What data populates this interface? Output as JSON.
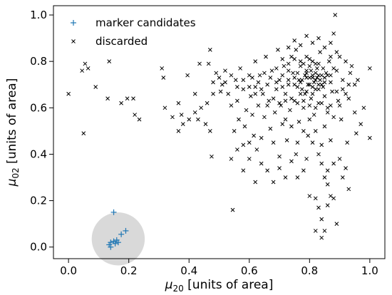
{
  "chart_data": {
    "type": "scatter",
    "xlabel": {
      "symbol": "μ",
      "sub": "20",
      "text": " [units of area]"
    },
    "ylabel": {
      "symbol": "μ",
      "sub": "02",
      "text": " [units of area]"
    },
    "xlim": [
      -0.05,
      1.05
    ],
    "ylim": [
      -0.05,
      1.04
    ],
    "xticks": [
      "0.0",
      "0.2",
      "0.4",
      "0.6",
      "0.8",
      "1.0"
    ],
    "yticks": [
      "0.0",
      "0.2",
      "0.4",
      "0.6",
      "0.8",
      "1.0"
    ],
    "xtick_values": [
      0.0,
      0.2,
      0.4,
      0.6,
      0.8,
      1.0
    ],
    "ytick_values": [
      0.0,
      0.2,
      0.4,
      0.6,
      0.8,
      1.0
    ],
    "grid": false,
    "legend_position": "top-left",
    "highlight_circle": {
      "cx": 0.165,
      "cy": 0.035,
      "r": 0.088,
      "color": "#d9d9d9"
    },
    "series": [
      {
        "name": "marker candidates",
        "marker": "+",
        "color": "#1f77b4",
        "points": [
          [
            0.15,
            0.15
          ],
          [
            0.19,
            0.07
          ],
          [
            0.175,
            0.055
          ],
          [
            0.16,
            0.03
          ],
          [
            0.15,
            0.025
          ],
          [
            0.14,
            0.02
          ],
          [
            0.135,
            0.01
          ],
          [
            0.14,
            0.0
          ],
          [
            0.165,
            0.02
          ],
          [
            0.155,
            0.015
          ]
        ]
      },
      {
        "name": "discarded",
        "marker": "x",
        "color": "#000000",
        "points": [
          [
            0.0,
            0.66
          ],
          [
            0.045,
            0.76
          ],
          [
            0.055,
            0.79
          ],
          [
            0.065,
            0.77
          ],
          [
            0.09,
            0.69
          ],
          [
            0.135,
            0.8
          ],
          [
            0.13,
            0.64
          ],
          [
            0.05,
            0.49
          ],
          [
            0.175,
            0.62
          ],
          [
            0.195,
            0.64
          ],
          [
            0.215,
            0.64
          ],
          [
            0.22,
            0.57
          ],
          [
            0.235,
            0.55
          ],
          [
            0.31,
            0.77
          ],
          [
            0.315,
            0.73
          ],
          [
            0.32,
            0.6
          ],
          [
            0.345,
            0.56
          ],
          [
            0.365,
            0.5
          ],
          [
            0.365,
            0.62
          ],
          [
            0.375,
            0.57
          ],
          [
            0.395,
            0.74
          ],
          [
            0.42,
            0.66
          ],
          [
            0.43,
            0.55
          ],
          [
            0.435,
            0.79
          ],
          [
            0.455,
            0.53
          ],
          [
            0.465,
            0.79
          ],
          [
            0.47,
            0.85
          ],
          [
            0.47,
            0.5
          ],
          [
            0.475,
            0.39
          ],
          [
            0.48,
            0.71
          ],
          [
            0.49,
            0.75
          ],
          [
            0.505,
            0.67
          ],
          [
            0.51,
            0.7
          ],
          [
            0.52,
            0.76
          ],
          [
            0.53,
            0.66
          ],
          [
            0.54,
            0.61
          ],
          [
            0.545,
            0.16
          ],
          [
            0.55,
            0.5
          ],
          [
            0.555,
            0.72
          ],
          [
            0.56,
            0.63
          ],
          [
            0.565,
            0.55
          ],
          [
            0.57,
            0.77
          ],
          [
            0.58,
            0.44
          ],
          [
            0.58,
            0.68
          ],
          [
            0.585,
            0.52
          ],
          [
            0.59,
            0.59
          ],
          [
            0.6,
            0.74
          ],
          [
            0.6,
            0.45
          ],
          [
            0.605,
            0.65
          ],
          [
            0.61,
            0.57
          ],
          [
            0.615,
            0.48
          ],
          [
            0.62,
            0.8
          ],
          [
            0.62,
            0.69
          ],
          [
            0.625,
            0.42
          ],
          [
            0.63,
            0.61
          ],
          [
            0.635,
            0.74
          ],
          [
            0.64,
            0.47
          ],
          [
            0.645,
            0.66
          ],
          [
            0.65,
            0.56
          ],
          [
            0.655,
            0.82
          ],
          [
            0.66,
            0.7
          ],
          [
            0.665,
            0.63
          ],
          [
            0.67,
            0.51
          ],
          [
            0.675,
            0.76
          ],
          [
            0.68,
            0.45
          ],
          [
            0.685,
            0.58
          ],
          [
            0.69,
            0.68
          ],
          [
            0.695,
            0.85
          ],
          [
            0.7,
            0.72
          ],
          [
            0.7,
            0.39
          ],
          [
            0.705,
            0.61
          ],
          [
            0.71,
            0.53
          ],
          [
            0.715,
            0.78
          ],
          [
            0.72,
            0.66
          ],
          [
            0.725,
            0.46
          ],
          [
            0.73,
            0.7
          ],
          [
            0.735,
            0.59
          ],
          [
            0.74,
            0.82
          ],
          [
            0.745,
            0.75
          ],
          [
            0.75,
            0.63
          ],
          [
            0.755,
            0.4
          ],
          [
            0.755,
            0.85
          ],
          [
            0.76,
            0.69
          ],
          [
            0.765,
            0.54
          ],
          [
            0.77,
            0.78
          ],
          [
            0.775,
            0.72
          ],
          [
            0.78,
            0.6
          ],
          [
            0.785,
            0.66
          ],
          [
            0.79,
            0.76
          ],
          [
            0.795,
            0.48
          ],
          [
            0.8,
            0.81
          ],
          [
            0.8,
            0.7
          ],
          [
            0.805,
            0.64
          ],
          [
            0.81,
            0.74
          ],
          [
            0.815,
            0.57
          ],
          [
            0.82,
            0.79
          ],
          [
            0.82,
            0.68
          ],
          [
            0.825,
            0.73
          ],
          [
            0.83,
            0.62
          ],
          [
            0.835,
            0.84
          ],
          [
            0.84,
            0.7
          ],
          [
            0.84,
            0.44
          ],
          [
            0.845,
            0.77
          ],
          [
            0.85,
            0.65
          ],
          [
            0.855,
            0.75
          ],
          [
            0.86,
            0.58
          ],
          [
            0.865,
            0.8
          ],
          [
            0.87,
            0.71
          ],
          [
            0.875,
            0.67
          ],
          [
            0.88,
            0.92
          ],
          [
            0.885,
            1.0
          ],
          [
            0.89,
            0.76
          ],
          [
            0.895,
            0.63
          ],
          [
            0.9,
            0.82
          ],
          [
            0.905,
            0.55
          ],
          [
            0.91,
            0.72
          ],
          [
            0.92,
            0.66
          ],
          [
            0.925,
            0.45
          ],
          [
            0.935,
            0.75
          ],
          [
            0.95,
            0.7
          ],
          [
            0.955,
            0.49
          ],
          [
            0.98,
            0.6
          ],
          [
            1.0,
            0.47
          ],
          [
            1.0,
            0.77
          ],
          [
            0.765,
            0.72
          ],
          [
            0.775,
            0.68
          ],
          [
            0.785,
            0.74
          ],
          [
            0.795,
            0.7
          ],
          [
            0.805,
            0.76
          ],
          [
            0.815,
            0.71
          ],
          [
            0.825,
            0.77
          ],
          [
            0.835,
            0.72
          ],
          [
            0.845,
            0.69
          ],
          [
            0.79,
            0.73
          ],
          [
            0.81,
            0.69
          ],
          [
            0.82,
            0.75
          ],
          [
            0.83,
            0.7
          ],
          [
            0.8,
            0.78
          ],
          [
            0.77,
            0.66
          ],
          [
            0.76,
            0.75
          ],
          [
            0.78,
            0.79
          ],
          [
            0.84,
            0.74
          ],
          [
            0.85,
            0.71
          ],
          [
            0.86,
            0.74
          ],
          [
            0.75,
            0.73
          ],
          [
            0.73,
            0.76
          ],
          [
            0.88,
            0.77
          ],
          [
            0.87,
            0.82
          ],
          [
            0.82,
            0.72
          ],
          [
            0.81,
            0.66
          ],
          [
            0.83,
            0.79
          ],
          [
            0.79,
            0.67
          ],
          [
            0.8,
            0.73
          ],
          [
            0.8,
            0.55
          ],
          [
            0.82,
            0.5
          ],
          [
            0.84,
            0.36
          ],
          [
            0.85,
            0.3
          ],
          [
            0.86,
            0.27
          ],
          [
            0.87,
            0.22
          ],
          [
            0.86,
            0.33
          ],
          [
            0.83,
            0.4
          ],
          [
            0.81,
            0.45
          ],
          [
            0.85,
            0.52
          ],
          [
            0.88,
            0.36
          ],
          [
            0.87,
            0.46
          ],
          [
            0.79,
            0.38
          ],
          [
            0.78,
            0.33
          ],
          [
            0.82,
            0.21
          ],
          [
            0.83,
            0.17
          ],
          [
            0.84,
            0.12
          ],
          [
            0.86,
            0.18
          ],
          [
            0.88,
            0.21
          ],
          [
            0.89,
            0.1
          ],
          [
            0.85,
            0.07
          ],
          [
            0.84,
            0.04
          ],
          [
            0.82,
            0.07
          ],
          [
            0.8,
            0.22
          ],
          [
            0.76,
            0.3
          ],
          [
            0.74,
            0.37
          ],
          [
            0.72,
            0.3
          ],
          [
            0.7,
            0.34
          ],
          [
            0.68,
            0.28
          ],
          [
            0.66,
            0.33
          ],
          [
            0.64,
            0.36
          ],
          [
            0.62,
            0.28
          ],
          [
            0.6,
            0.38
          ],
          [
            0.58,
            0.33
          ],
          [
            0.56,
            0.42
          ],
          [
            0.54,
            0.38
          ],
          [
            0.9,
            0.38
          ],
          [
            0.91,
            0.3
          ],
          [
            0.93,
            0.25
          ],
          [
            0.92,
            0.34
          ],
          [
            0.76,
            0.45
          ],
          [
            0.74,
            0.52
          ],
          [
            0.72,
            0.55
          ],
          [
            0.78,
            0.5
          ],
          [
            0.88,
            0.56
          ],
          [
            0.9,
            0.61
          ],
          [
            0.93,
            0.64
          ],
          [
            0.95,
            0.58
          ],
          [
            0.97,
            0.53
          ],
          [
            0.69,
            0.77
          ],
          [
            0.71,
            0.81
          ],
          [
            0.73,
            0.86
          ],
          [
            0.75,
            0.89
          ],
          [
            0.77,
            0.87
          ],
          [
            0.79,
            0.91
          ],
          [
            0.81,
            0.88
          ],
          [
            0.83,
            0.9
          ],
          [
            0.85,
            0.86
          ],
          [
            0.87,
            0.88
          ],
          [
            0.89,
            0.84
          ],
          [
            0.92,
            0.8
          ],
          [
            0.94,
            0.78
          ],
          [
            0.96,
            0.72
          ],
          [
            0.93,
            0.7
          ],
          [
            0.91,
            0.68
          ],
          [
            0.89,
            0.67
          ],
          [
            0.87,
            0.61
          ],
          [
            0.86,
            0.6
          ],
          [
            0.84,
            0.62
          ],
          [
            0.82,
            0.6
          ],
          [
            0.8,
            0.61
          ],
          [
            0.78,
            0.63
          ],
          [
            0.76,
            0.62
          ],
          [
            0.74,
            0.64
          ],
          [
            0.72,
            0.63
          ],
          [
            0.7,
            0.62
          ],
          [
            0.68,
            0.64
          ],
          [
            0.66,
            0.61
          ],
          [
            0.64,
            0.68
          ],
          [
            0.62,
            0.66
          ],
          [
            0.6,
            0.69
          ],
          [
            0.58,
            0.72
          ],
          [
            0.56,
            0.69
          ],
          [
            0.54,
            0.74
          ],
          [
            0.52,
            0.71
          ],
          [
            0.5,
            0.73
          ],
          [
            0.48,
            0.66
          ],
          [
            0.46,
            0.62
          ],
          [
            0.44,
            0.6
          ],
          [
            0.42,
            0.58
          ],
          [
            0.4,
            0.55
          ],
          [
            0.38,
            0.53
          ],
          [
            0.71,
            0.69
          ],
          [
            0.73,
            0.72
          ],
          [
            0.75,
            0.7
          ],
          [
            0.77,
            0.71
          ],
          [
            0.79,
            0.75
          ],
          [
            0.81,
            0.73
          ],
          [
            0.83,
            0.74
          ],
          [
            0.85,
            0.73
          ],
          [
            0.87,
            0.74
          ],
          [
            0.83,
            0.68
          ],
          [
            0.81,
            0.8
          ],
          [
            0.79,
            0.82
          ],
          [
            0.77,
            0.8
          ],
          [
            0.75,
            0.81
          ],
          [
            0.73,
            0.79
          ],
          [
            0.71,
            0.74
          ],
          [
            0.69,
            0.71
          ],
          [
            0.67,
            0.73
          ],
          [
            0.65,
            0.75
          ],
          [
            0.63,
            0.71
          ],
          [
            0.61,
            0.73
          ]
        ]
      }
    ]
  }
}
